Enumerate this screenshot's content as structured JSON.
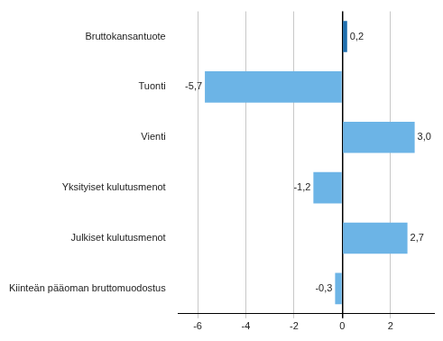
{
  "chart_data": {
    "type": "bar",
    "orientation": "horizontal",
    "categories": [
      "Bruttokansantuote",
      "Tuonti",
      "Vienti",
      "Yksityiset kulutusmenot",
      "Julkiset kulutusmenot",
      "Kiinteän pääoman bruttomuodostus"
    ],
    "values": [
      0.2,
      -5.7,
      3.0,
      -1.2,
      2.7,
      -0.3
    ],
    "value_labels": [
      "0,2",
      "-5,7",
      "3,0",
      "-1,2",
      "2,7",
      "-0,3"
    ],
    "colors": [
      "#1f6fae",
      "#6cb4e6",
      "#6cb4e6",
      "#6cb4e6",
      "#6cb4e6",
      "#6cb4e6"
    ],
    "xlim": [
      -6.8,
      3.8
    ],
    "xticks": [
      -6,
      -4,
      -2,
      0,
      2
    ],
    "grid": true,
    "data_labels": true
  }
}
